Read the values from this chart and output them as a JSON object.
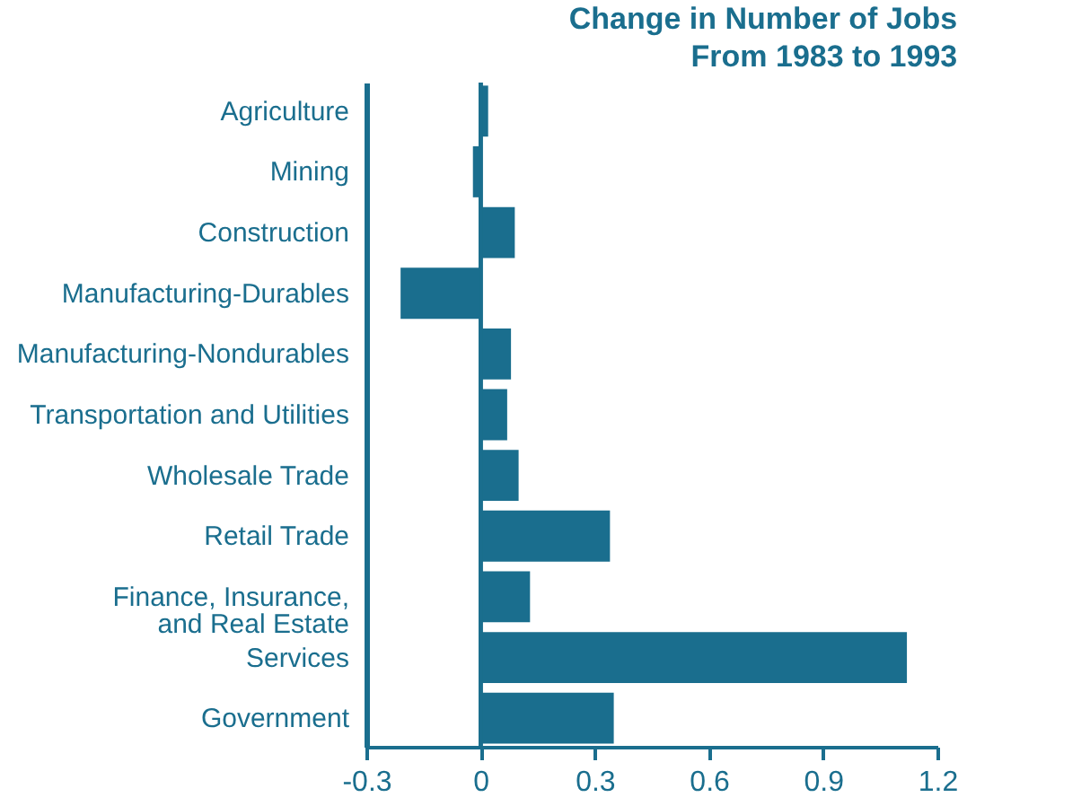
{
  "chart_data": {
    "type": "bar",
    "orientation": "horizontal",
    "title": "Change in Number of Jobs\nFrom 1983 to 1993",
    "categories": [
      "Agriculture",
      "Mining",
      "Construction",
      "Manufacturing-Durables",
      "Manufacturing-Nondurables",
      "Transportation and Utilities",
      "Wholesale Trade",
      "Retail Trade",
      "Finance, Insurance,\nand Real Estate",
      "Services",
      "Government"
    ],
    "values": [
      0.02,
      -0.02,
      0.09,
      -0.21,
      0.08,
      0.07,
      0.1,
      0.34,
      0.13,
      1.12,
      0.35
    ],
    "color": "#1a6e8e",
    "xlim": [
      -0.3,
      1.2
    ],
    "xticks": [
      -0.3,
      0,
      0.3,
      0.6,
      0.9,
      1.2
    ],
    "ref_lines": [
      {
        "axis": "x",
        "value": 0
      }
    ],
    "grid": false
  }
}
